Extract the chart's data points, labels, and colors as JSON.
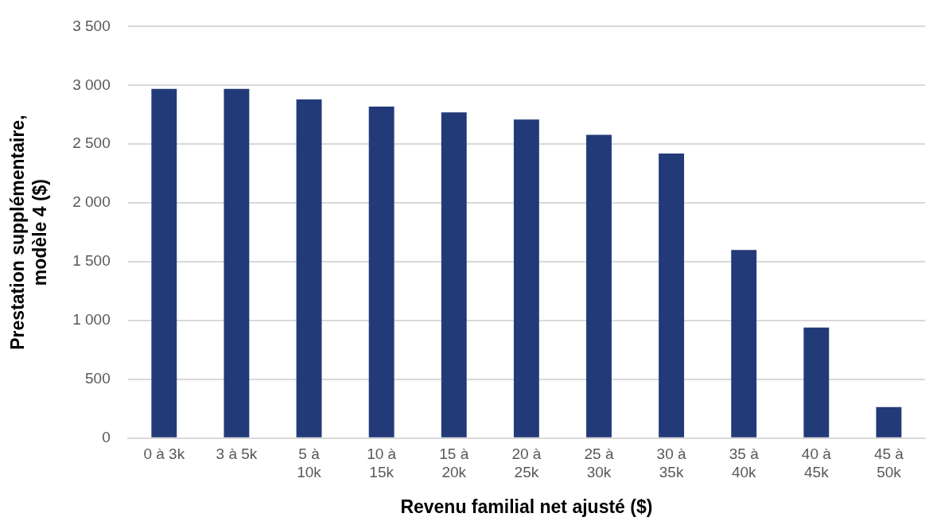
{
  "chart_data": {
    "type": "bar",
    "xlabel": "Revenu familial net ajusté ($)",
    "ylabel": "Prestation supplémentaire, modèle 4 ($)",
    "categories": [
      "0 à 3k",
      "3 à 5k",
      "5 à 10k",
      "10 à 15k",
      "15 à 20k",
      "20 à 25k",
      "25 à 30k",
      "30 à 35k",
      "35 à 40k",
      "40 à 45k",
      "45 à 50k"
    ],
    "values": [
      2970,
      2970,
      2880,
      2820,
      2770,
      2710,
      2580,
      2420,
      1600,
      940,
      265
    ],
    "color": "#223a78",
    "ylim": [
      0,
      3500
    ],
    "yticks": [
      {
        "value": 0,
        "label": "0"
      },
      {
        "value": 500,
        "label": "500"
      },
      {
        "value": 1000,
        "label": "1 000"
      },
      {
        "value": 1500,
        "label": "1 500"
      },
      {
        "value": 2000,
        "label": "2 000"
      },
      {
        "value": 2500,
        "label": "2 500"
      },
      {
        "value": 3000,
        "label": "3 000"
      },
      {
        "value": 3500,
        "label": "3 500"
      }
    ],
    "grid": "y"
  }
}
